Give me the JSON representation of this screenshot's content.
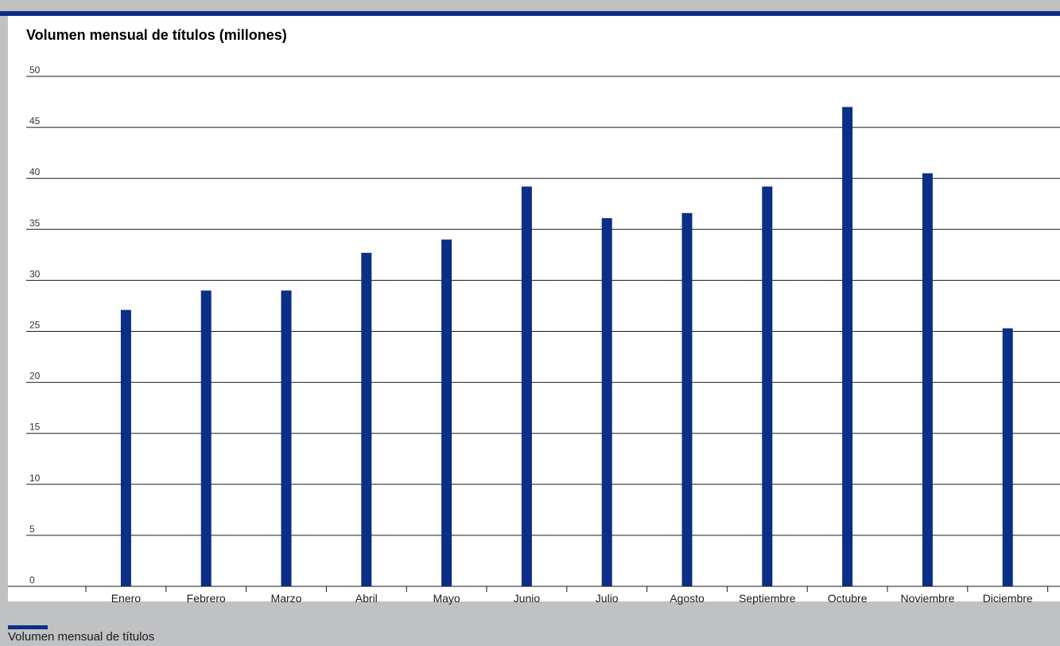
{
  "chart_data": {
    "type": "bar",
    "title": "Volumen mensual de títulos (millones)",
    "xlabel": "",
    "ylabel": "",
    "categories": [
      "Enero",
      "Febrero",
      "Marzo",
      "Abril",
      "Mayo",
      "Junio",
      "Julio",
      "Agosto",
      "Septiembre",
      "Octubre",
      "Noviembre",
      "Diciembre"
    ],
    "series": [
      {
        "name": "Volumen mensual de títulos",
        "values": [
          27.1,
          29.0,
          29.0,
          32.7,
          34.0,
          39.2,
          36.1,
          36.6,
          39.2,
          47.0,
          40.5,
          25.3
        ],
        "color": "#0b2f87"
      }
    ],
    "ylim": [
      0,
      50
    ],
    "yticks": [
      "0",
      "5",
      "10",
      "15",
      "20",
      "25",
      "30",
      "35",
      "40",
      "45",
      "50"
    ],
    "grid": true,
    "legend_position": "bottom-left"
  }
}
